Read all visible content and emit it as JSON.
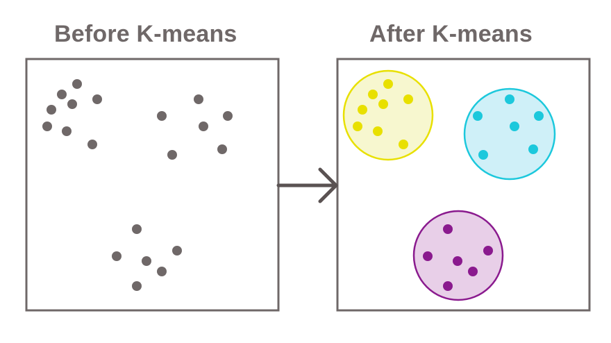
{
  "titles": {
    "before": "Before K-means",
    "after": "After K-means"
  },
  "colors": {
    "frame": "#6f6868",
    "unclustered_point": "#6f6868",
    "arrow": "#5a5252",
    "cluster_yellow_fill": "#f7f7cf",
    "cluster_yellow_stroke": "#e8e000",
    "cluster_yellow_point": "#e8e000",
    "cluster_cyan_fill": "#cff0f8",
    "cluster_cyan_stroke": "#1cc8dc",
    "cluster_cyan_point": "#1cc8dc",
    "cluster_purple_fill": "#e8cfe8",
    "cluster_purple_stroke": "#8a1a8e",
    "cluster_purple_point": "#8a1a8e"
  },
  "icons": {
    "arrow": "right-arrow-icon"
  },
  "clusters": [
    "yellow",
    "cyan",
    "purple"
  ]
}
